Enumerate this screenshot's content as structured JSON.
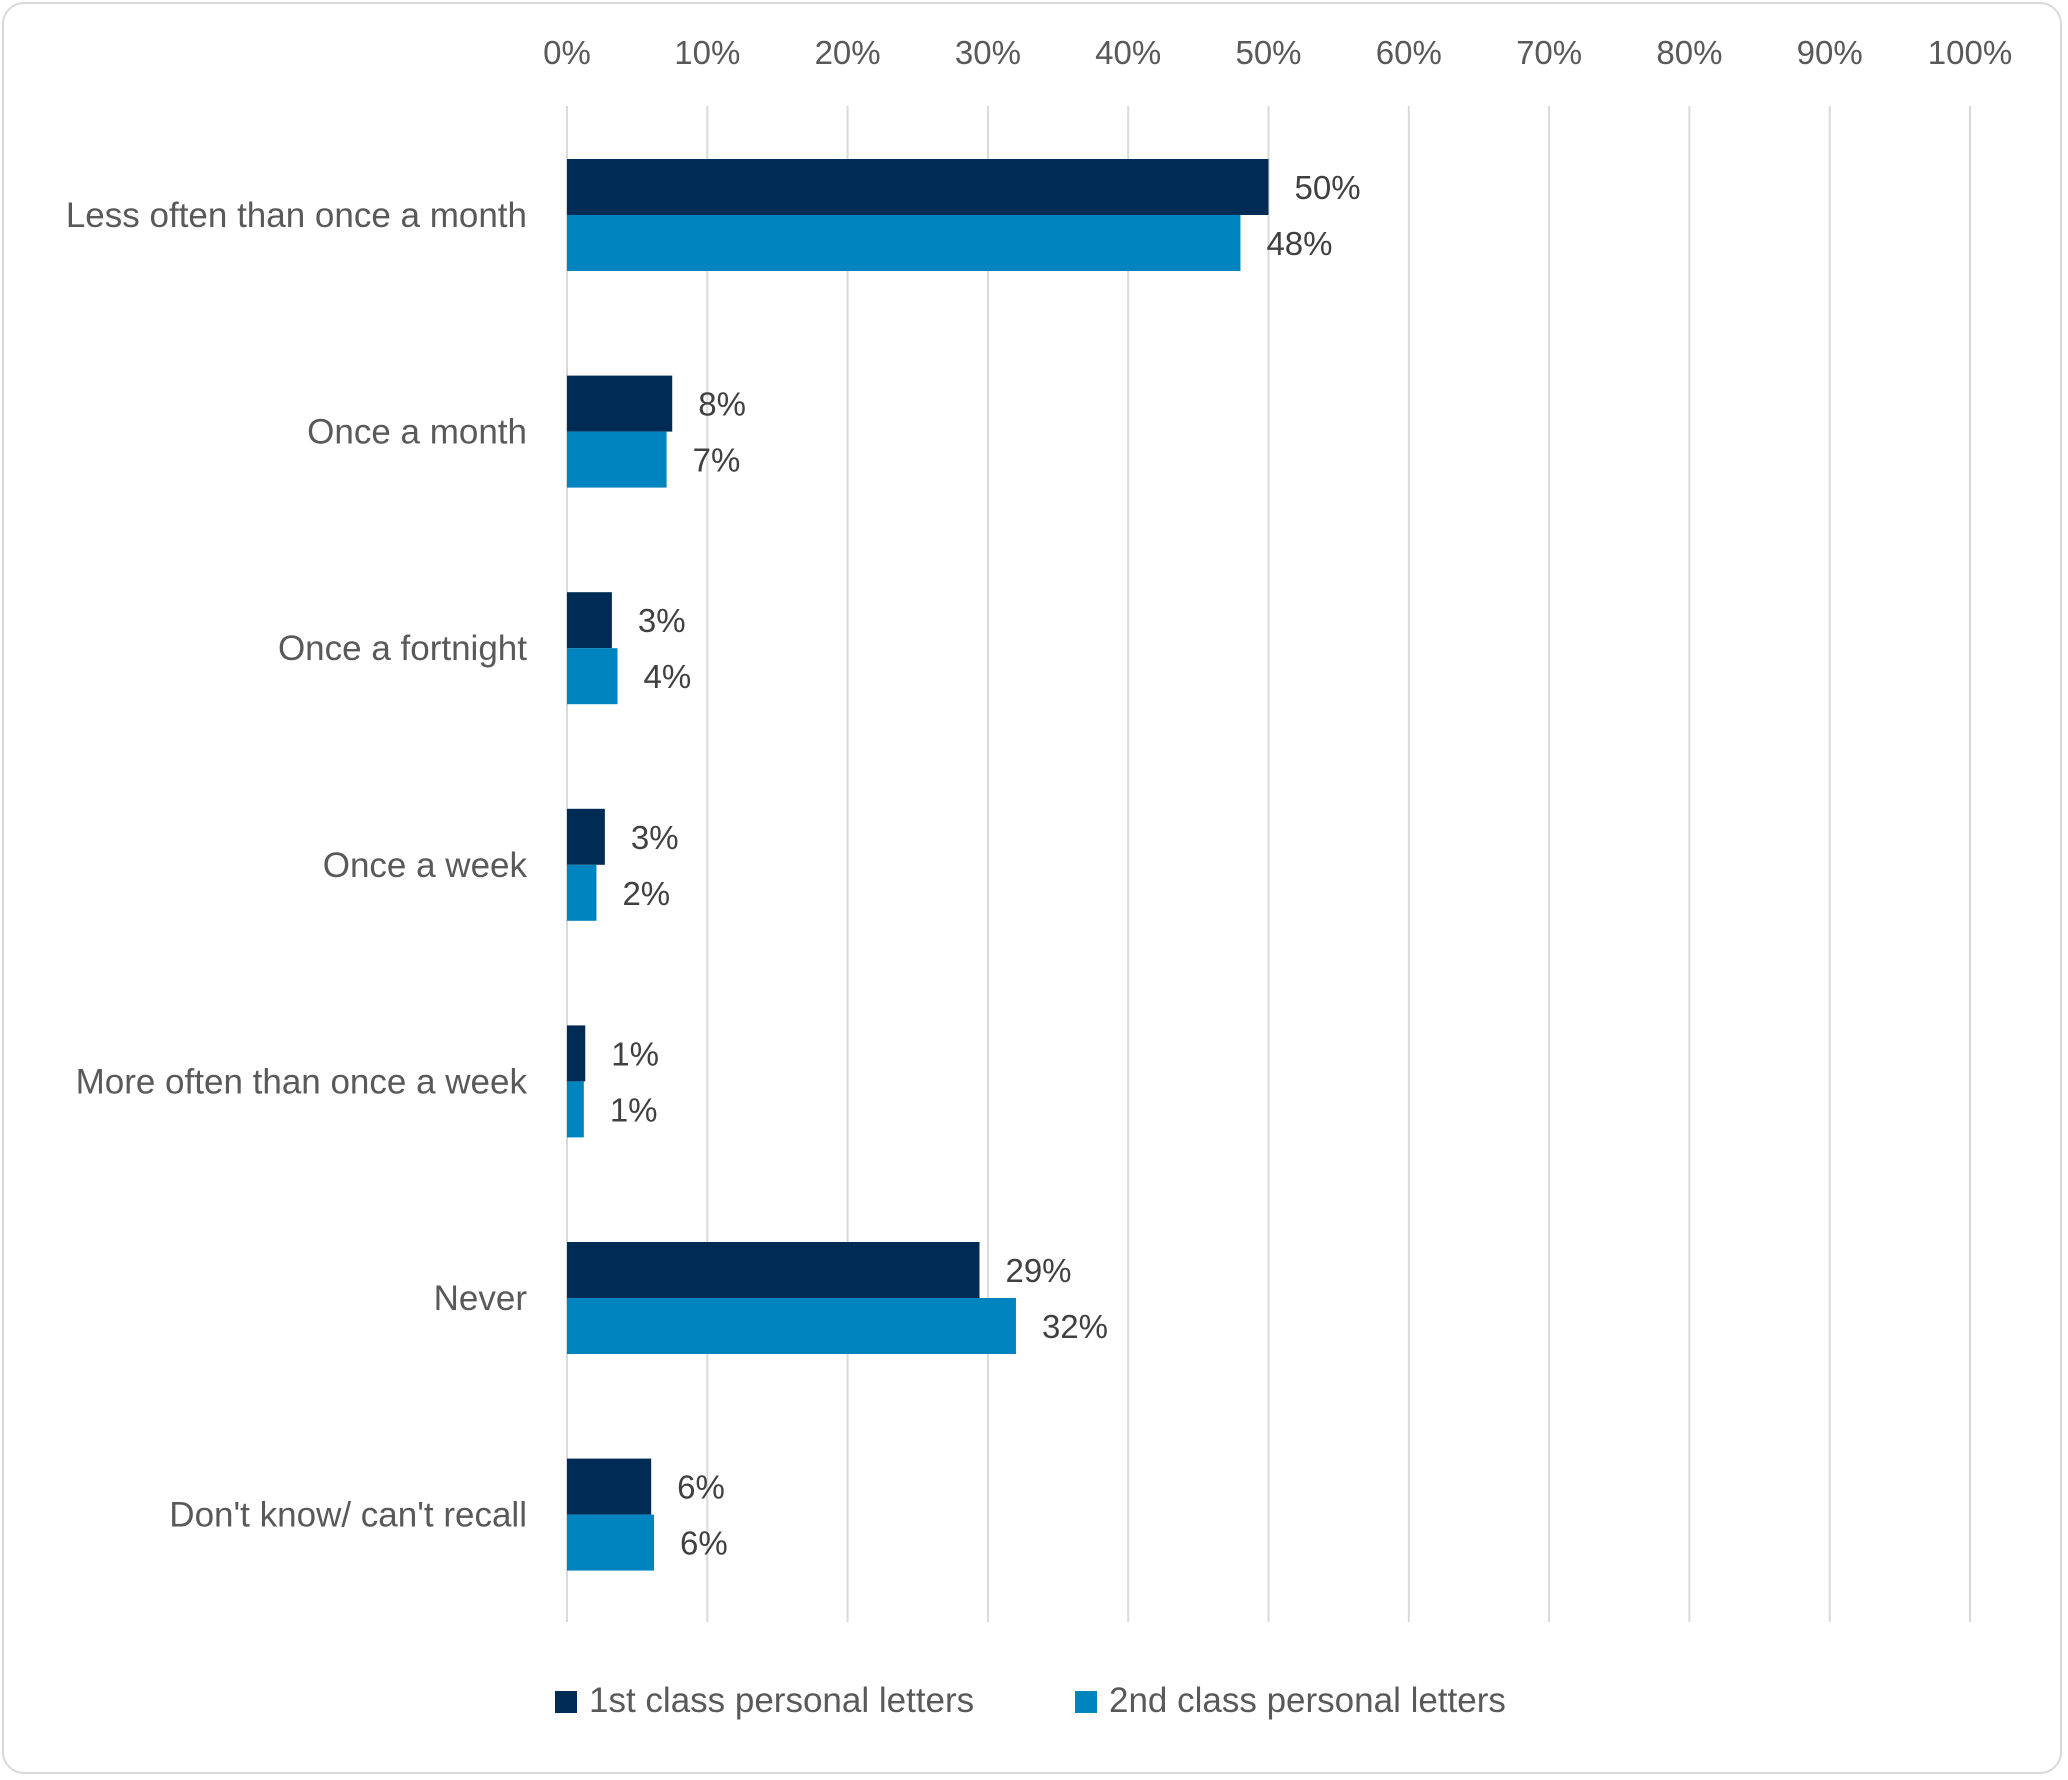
{
  "chart_data": {
    "type": "bar",
    "orientation": "horizontal",
    "title": "",
    "xlabel": "",
    "ylabel": "",
    "xlim": [
      0,
      100
    ],
    "x_ticks": [
      "0%",
      "10%",
      "20%",
      "30%",
      "40%",
      "50%",
      "60%",
      "70%",
      "80%",
      "90%",
      "100%"
    ],
    "grid": "vertical",
    "legend_position": "bottom",
    "categories": [
      "Less often than once a month",
      "Once a month",
      "Once a fortnight",
      "Once a week",
      "More often than once a week",
      "Never",
      "Don't know/ can't recall"
    ],
    "series": [
      {
        "name": "1st class personal letters",
        "color": "#002b55",
        "values": [
          50,
          7.5,
          3.2,
          2.7,
          1.3,
          29.4,
          6
        ],
        "labels": [
          "50%",
          "8%",
          "3%",
          "3%",
          "1%",
          "29%",
          "6%"
        ]
      },
      {
        "name": "2nd class personal letters",
        "color": "#0084c0",
        "values": [
          48,
          7.1,
          3.6,
          2.1,
          1.2,
          32,
          6.2
        ],
        "labels": [
          "48%",
          "7%",
          "4%",
          "2%",
          "1%",
          "32%",
          "6%"
        ]
      }
    ]
  }
}
